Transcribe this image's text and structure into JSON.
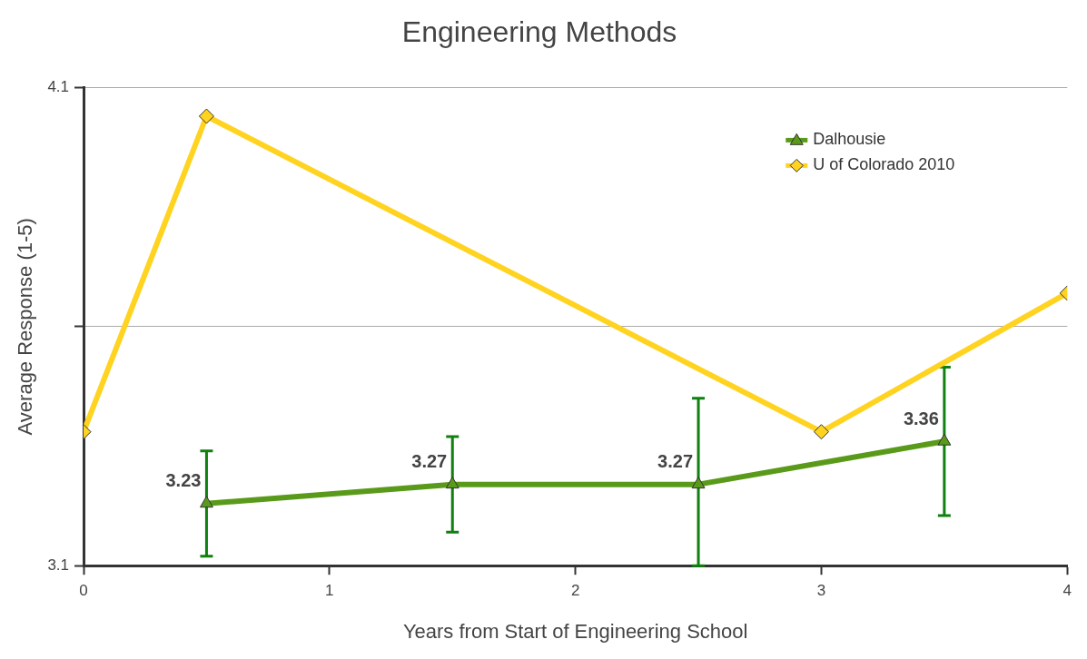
{
  "chart_data": {
    "type": "line",
    "title": "Engineering Methods",
    "xlabel": "Years from Start of Engineering School",
    "ylabel": "Average Response (1-5)",
    "xlim": [
      0,
      4
    ],
    "xticks": [
      0,
      1,
      2,
      3,
      4
    ],
    "ylim": [
      3.1,
      4.1
    ],
    "yticks": [
      3.1,
      {
        "value": 3.6,
        "label": null
      },
      4.1
    ],
    "grid": "y",
    "legend": "top right",
    "series": [
      {
        "name": "Dalhousie",
        "color": "#5a9a1a",
        "marker": "triangle",
        "x": [
          0.5,
          1.5,
          2.5,
          3.5
        ],
        "values": [
          3.23,
          3.27,
          3.27,
          3.36
        ],
        "errors": [
          0.11,
          0.1,
          [
            3.1,
            3.45
          ],
          0.155
        ],
        "value_labels": [
          "3.23",
          "3.27",
          "3.27",
          "3.36"
        ]
      },
      {
        "name": "U of Colorado 2010",
        "color": "#ffd320",
        "marker": "diamond",
        "x": [
          0,
          0.5,
          3,
          4
        ],
        "values": [
          3.38,
          4.04,
          3.38,
          3.67
        ]
      }
    ]
  }
}
